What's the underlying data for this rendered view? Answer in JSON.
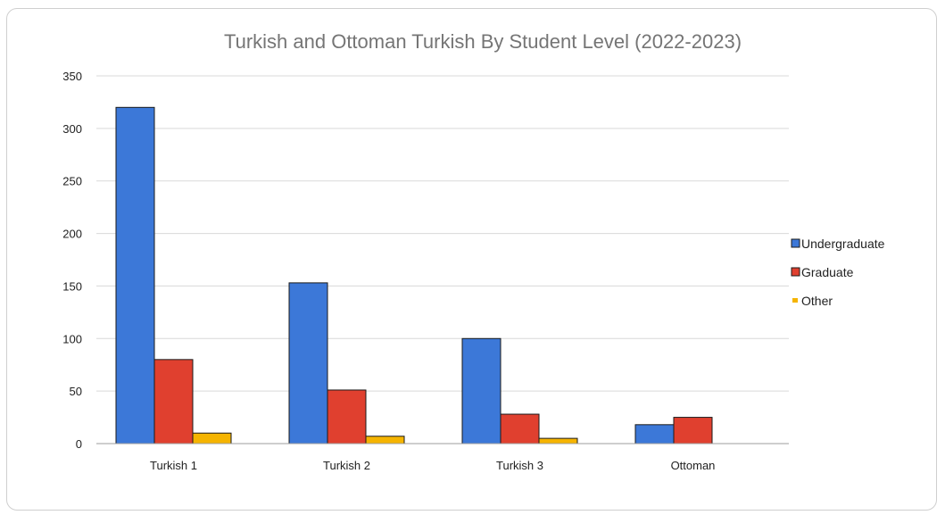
{
  "chart_data": {
    "type": "bar",
    "title": "Turkish and Ottoman Turkish By Student Level (2022-2023)",
    "xlabel": "",
    "ylabel": "",
    "categories": [
      "Turkish 1",
      "Turkish 2",
      "Turkish 3",
      "Ottoman"
    ],
    "series": [
      {
        "name": "Undergraduate",
        "values": [
          320,
          153,
          100,
          18
        ],
        "color": "#3c78d8"
      },
      {
        "name": "Graduate",
        "values": [
          80,
          51,
          28,
          25
        ],
        "color": "#e0402f"
      },
      {
        "name": "Other",
        "values": [
          10,
          7,
          5,
          0
        ],
        "color": "#f5b400"
      }
    ],
    "ylim": [
      0,
      350
    ],
    "yticks": [
      0,
      50,
      100,
      150,
      200,
      250,
      300,
      350
    ],
    "grid": true,
    "legend_position": "right"
  }
}
